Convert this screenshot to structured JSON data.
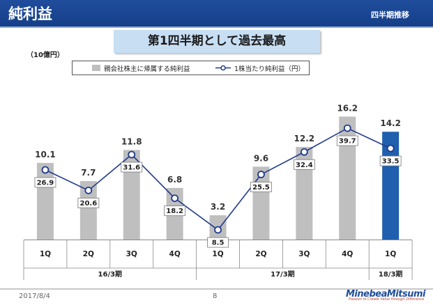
{
  "header": {
    "title": "純利益",
    "subtitle": "四半期推移"
  },
  "banner": "第1四半期として過去最高",
  "unit_label": "（10億円）",
  "legend": {
    "bars": "親会社株主に帰属する純利益",
    "line": "1株当たり純利益（円）"
  },
  "colors": {
    "header": "#1f4d9c",
    "bar": "#bfbfbf",
    "bar_highlight": "#1f5fae",
    "line": "#1f3a8c",
    "banner": "#c7def3"
  },
  "chart_data": {
    "type": "bar",
    "categories": [
      "1Q",
      "2Q",
      "3Q",
      "4Q",
      "1Q",
      "2Q",
      "3Q",
      "4Q",
      "1Q"
    ],
    "groups": [
      {
        "label": "16/3期",
        "count": 4
      },
      {
        "label": "17/3期",
        "count": 4
      },
      {
        "label": "18/3期",
        "count": 1
      }
    ],
    "series": [
      {
        "name": "親会社株主に帰属する純利益",
        "type": "bar",
        "values": [
          10.1,
          7.7,
          11.8,
          6.8,
          3.2,
          9.6,
          12.2,
          16.2,
          14.2
        ],
        "labels": [
          "10.1",
          "7.7",
          "11.8",
          "6.8",
          "3.2",
          "9.6",
          "12.2",
          "16.2",
          "14.2"
        ]
      },
      {
        "name": "1株当たり純利益（円）",
        "type": "line",
        "values": [
          26.9,
          20.6,
          31.6,
          18.2,
          8.5,
          25.5,
          32.4,
          39.7,
          33.5
        ],
        "labels": [
          "26.9",
          "20.6",
          "31.6",
          "18.2",
          "8.5",
          "25.5",
          "32.4",
          "39.7",
          "33.5"
        ]
      }
    ],
    "highlight_index": 8,
    "grid": false,
    "legend_position": "top"
  },
  "footer": {
    "date": "2017/8/4",
    "page": "8",
    "logo": "MinebeaMitsumi",
    "tagline": "Passion to Create Value through Difference"
  }
}
